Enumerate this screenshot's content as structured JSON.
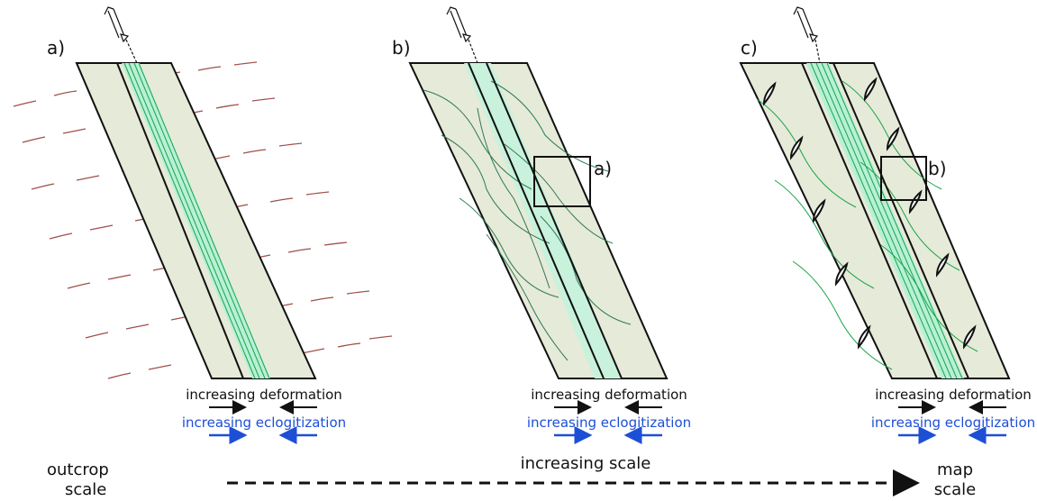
{
  "panels": [
    {
      "label": "a)",
      "deformation": "increasing deformation",
      "eclogitization": "increasing eclogitization"
    },
    {
      "label": "b)",
      "inset_label": "a)",
      "deformation": "increasing deformation",
      "eclogitization": "increasing eclogitization"
    },
    {
      "label": "c)",
      "inset_label": "b)",
      "deformation": "increasing deformation",
      "eclogitization": "increasing eclogitization"
    }
  ],
  "scale_bar": {
    "start": [
      "outcrop",
      "scale"
    ],
    "middle": "increasing scale",
    "end": [
      "map",
      "scale"
    ]
  }
}
